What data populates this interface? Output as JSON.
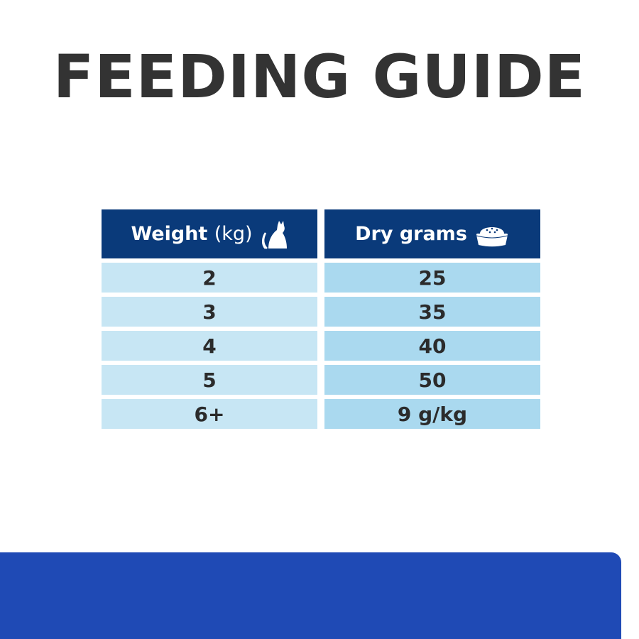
{
  "title": "FEEDING GUIDE",
  "table": {
    "headers": {
      "weight": {
        "label": "Weight",
        "unit": "(kg)",
        "icon": "cat-icon"
      },
      "dry": {
        "label": "Dry grams",
        "icon": "food-bowl-icon"
      }
    },
    "rows": [
      {
        "weight": "2",
        "dry": "25"
      },
      {
        "weight": "3",
        "dry": "35"
      },
      {
        "weight": "4",
        "dry": "40"
      },
      {
        "weight": "5",
        "dry": "50"
      },
      {
        "weight": "6+",
        "dry": "9 g/kg"
      }
    ]
  },
  "colors": {
    "header": "#0a3a7a",
    "row_left": "#c7e6f4",
    "row_right": "#aad9ef",
    "panel": "#1f4ab5",
    "title": "#333333"
  }
}
